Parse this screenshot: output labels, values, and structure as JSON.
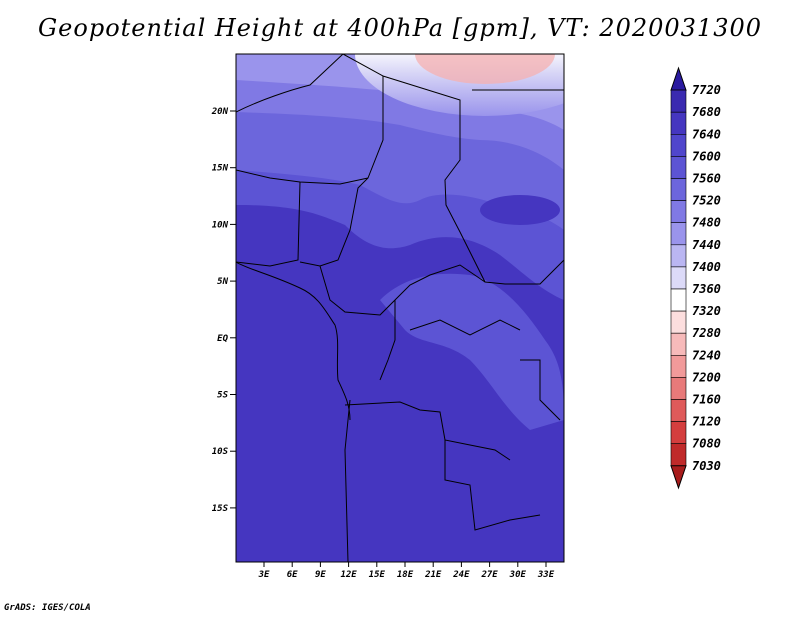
{
  "title": "Geopotential Height at 400hPa [gpm], VT: 2020031300",
  "credit": "GrADS: IGES/COLA",
  "map": {
    "lat_labels": [
      "20N",
      "15N",
      "10N",
      "5N",
      "EQ",
      "5S",
      "10S",
      "15S"
    ],
    "lon_labels": [
      "3E",
      "6E",
      "9E",
      "12E",
      "15E",
      "18E",
      "21E",
      "24E",
      "27E",
      "30E",
      "33E"
    ],
    "field": "Geopotential Height at 400hPa",
    "units": "gpm",
    "valid_time": "2020031300"
  },
  "colorbar": {
    "labels": [
      "7720",
      "7680",
      "7640",
      "7600",
      "7560",
      "7520",
      "7480",
      "7440",
      "7400",
      "7360",
      "7320",
      "7280",
      "7240",
      "7200",
      "7160",
      "7120",
      "7080",
      "7030"
    ],
    "colors": [
      "#2a1aa0",
      "#3a2ab0",
      "#4536c0",
      "#5046cc",
      "#5c54d4",
      "#6c66dc",
      "#8079e4",
      "#9a94ec",
      "#bab6f2",
      "#dcdaf8",
      "#ffffff",
      "#fcdede",
      "#f7baba",
      "#f19a9a",
      "#e87a7a",
      "#df5a5a",
      "#d43e3e",
      "#c02a2a",
      "#a81c1c"
    ]
  }
}
